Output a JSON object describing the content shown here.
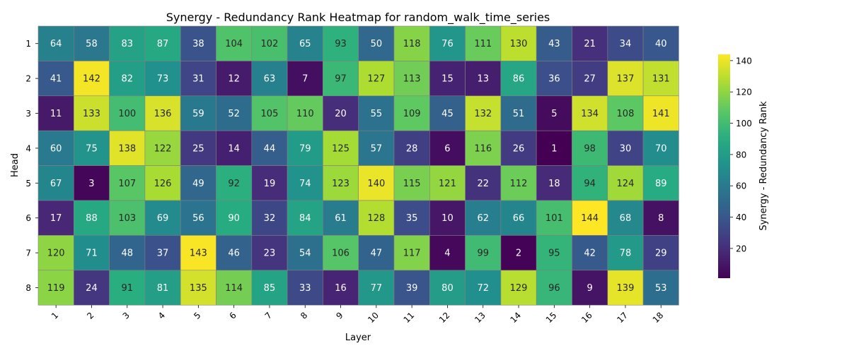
{
  "chart_data": {
    "type": "heatmap",
    "title": "Synergy - Redundancy Rank Heatmap for random_walk_time_series",
    "xlabel": "Layer",
    "ylabel": "Head",
    "x_categories": [
      "1",
      "2",
      "3",
      "4",
      "5",
      "6",
      "7",
      "8",
      "9",
      "10",
      "11",
      "12",
      "13",
      "14",
      "15",
      "16",
      "17",
      "18"
    ],
    "y_categories": [
      "1",
      "2",
      "3",
      "4",
      "5",
      "6",
      "7",
      "8"
    ],
    "values": [
      [
        64,
        58,
        83,
        87,
        38,
        104,
        102,
        65,
        93,
        50,
        118,
        76,
        111,
        130,
        43,
        21,
        34,
        40
      ],
      [
        41,
        142,
        82,
        73,
        31,
        12,
        63,
        7,
        97,
        127,
        113,
        15,
        13,
        86,
        36,
        27,
        137,
        131
      ],
      [
        11,
        133,
        100,
        136,
        59,
        52,
        105,
        110,
        20,
        55,
        109,
        45,
        132,
        51,
        5,
        134,
        108,
        141
      ],
      [
        60,
        75,
        138,
        122,
        25,
        14,
        44,
        79,
        125,
        57,
        28,
        6,
        116,
        26,
        1,
        98,
        30,
        70
      ],
      [
        67,
        3,
        107,
        126,
        49,
        92,
        19,
        74,
        123,
        140,
        115,
        121,
        22,
        112,
        18,
        94,
        124,
        89
      ],
      [
        17,
        88,
        103,
        69,
        56,
        90,
        32,
        84,
        61,
        128,
        35,
        10,
        62,
        66,
        101,
        144,
        68,
        8
      ],
      [
        120,
        71,
        48,
        37,
        143,
        46,
        23,
        54,
        106,
        47,
        117,
        4,
        99,
        2,
        95,
        42,
        78,
        29
      ],
      [
        119,
        24,
        91,
        81,
        135,
        114,
        85,
        33,
        16,
        77,
        39,
        80,
        72,
        129,
        96,
        9,
        139,
        53
      ]
    ],
    "colormap": "viridis",
    "vmin": 1,
    "vmax": 144,
    "colorbar": {
      "label": "Synergy - Redundancy Rank",
      "ticks": [
        "20",
        "40",
        "60",
        "80",
        "100",
        "120",
        "140"
      ]
    },
    "grid": false
  }
}
